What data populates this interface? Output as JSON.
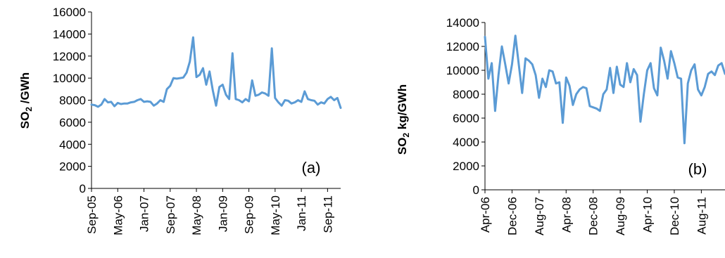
{
  "colors": {
    "line": "#5b9bd5",
    "axis": "#000000"
  },
  "chart_data": [
    {
      "type": "line",
      "panel_label": "(a)",
      "ylabel_main": "SO",
      "ylabel_sub": "2",
      "ylabel_rest": " /GWh",
      "ylim": [
        0,
        16000
      ],
      "yticks": [
        0,
        2000,
        4000,
        6000,
        8000,
        10000,
        12000,
        14000,
        16000
      ],
      "xlim": [
        0,
        76
      ],
      "xticks": [
        {
          "i": 0,
          "label": "Sep-05"
        },
        {
          "i": 8,
          "label": "May-06"
        },
        {
          "i": 16,
          "label": "Jan-07"
        },
        {
          "i": 24,
          "label": "Sep-07"
        },
        {
          "i": 32,
          "label": "May-08"
        },
        {
          "i": 40,
          "label": "Jan-09"
        },
        {
          "i": 48,
          "label": "Sep-09"
        },
        {
          "i": 56,
          "label": "May-10"
        },
        {
          "i": 64,
          "label": "Jan-11"
        },
        {
          "i": 72,
          "label": "Sep-11"
        }
      ],
      "grid": false,
      "series": [
        {
          "values": [
            7600,
            7550,
            7400,
            7600,
            8100,
            7800,
            7850,
            7450,
            7750,
            7650,
            7700,
            7700,
            7800,
            7850,
            8000,
            8100,
            7850,
            7900,
            7850,
            7500,
            7700,
            8000,
            7850,
            9000,
            9300,
            10000,
            9950,
            10000,
            10050,
            10500,
            11500,
            13700,
            10100,
            10300,
            10900,
            9400,
            10600,
            8900,
            7500,
            9200,
            9400,
            8500,
            8100,
            12250,
            8100,
            8000,
            7800,
            8100,
            7900,
            9800,
            8400,
            8500,
            8700,
            8600,
            8400,
            12700,
            8200,
            7800,
            7500,
            8000,
            7950,
            7700,
            7800,
            8000,
            7850,
            8800,
            8100,
            8000,
            7950,
            7600,
            7800,
            7700,
            8100,
            8300,
            8000,
            8200,
            7300
          ]
        }
      ]
    },
    {
      "type": "line",
      "panel_label": "(b)",
      "ylabel_main": "SO",
      "ylabel_sub": "2",
      "ylabel_rest": " kg/GWh",
      "ylim": [
        0,
        14000
      ],
      "yticks": [
        0,
        2000,
        4000,
        6000,
        8000,
        10000,
        12000,
        14000
      ],
      "xlim": [
        0,
        71
      ],
      "xticks": [
        {
          "i": 0,
          "label": "Apr-06"
        },
        {
          "i": 8,
          "label": "Dec-06"
        },
        {
          "i": 16,
          "label": "Aug-07"
        },
        {
          "i": 24,
          "label": "Apr-08"
        },
        {
          "i": 32,
          "label": "Dec-08"
        },
        {
          "i": 40,
          "label": "Aug-09"
        },
        {
          "i": 48,
          "label": "Apr-10"
        },
        {
          "i": 56,
          "label": "Dec-10"
        },
        {
          "i": 64,
          "label": "Aug-11"
        }
      ],
      "grid": false,
      "series": [
        {
          "values": [
            12800,
            9300,
            10600,
            6600,
            9600,
            12000,
            10500,
            8900,
            10500,
            12900,
            10500,
            8100,
            11000,
            10800,
            10500,
            9600,
            7700,
            9300,
            8600,
            10000,
            9900,
            8900,
            9000,
            5600,
            9400,
            8700,
            7100,
            8000,
            8400,
            8600,
            8500,
            7000,
            6900,
            6800,
            6600,
            8000,
            8400,
            10200,
            8100,
            10300,
            8800,
            8600,
            10600,
            9000,
            10100,
            9600,
            5700,
            8000,
            10000,
            10600,
            8500,
            7900,
            11900,
            10800,
            9300,
            11600,
            10600,
            9400,
            9300,
            3900,
            8900,
            10000,
            10500,
            8400,
            7900,
            8600,
            9700,
            9900,
            9600,
            10400,
            10600,
            9700
          ]
        }
      ]
    }
  ]
}
